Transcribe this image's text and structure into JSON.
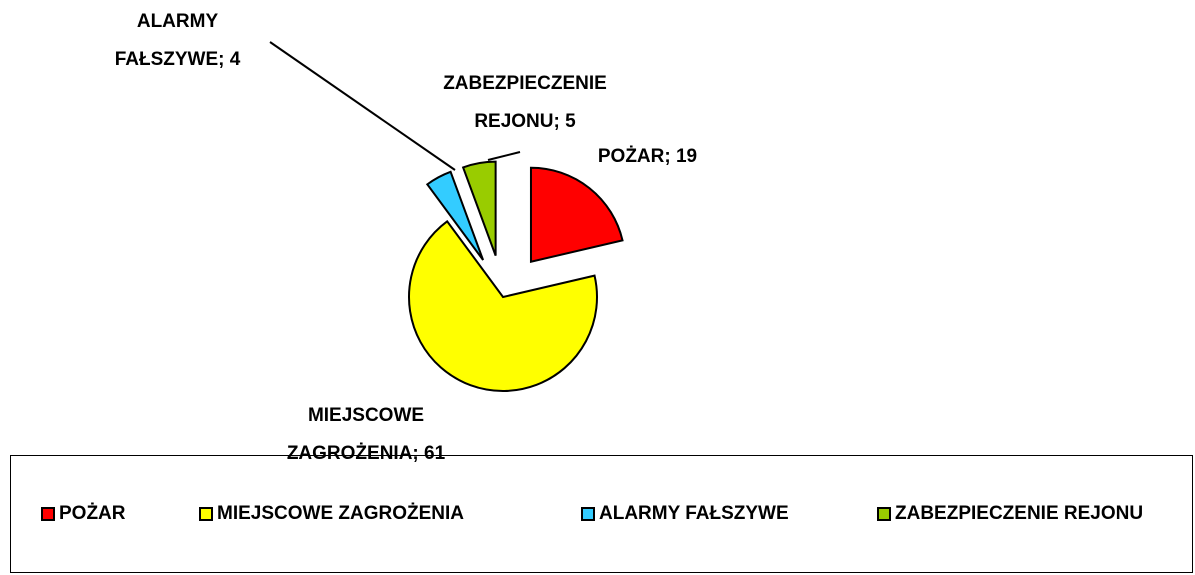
{
  "chart_data": {
    "type": "pie",
    "categories": [
      "POŻAR",
      "MIEJSCOWE ZAGROŻENIA",
      "ALARMY FAŁSZYWE",
      "ZABEZPIECZENIE REJONU"
    ],
    "values": [
      19,
      61,
      4,
      5
    ],
    "value_labels": [
      "POŻAR; 19",
      "MIEJSCOWE ZAGROŻENIA; 61",
      "ALARMY FAŁSZYWE; 4",
      "ZABEZPIECZENIE REJONU; 5"
    ],
    "colors": [
      "#ff0000",
      "#ffff00",
      "#33ccff",
      "#99cc00"
    ],
    "legend": "bottom"
  }
}
